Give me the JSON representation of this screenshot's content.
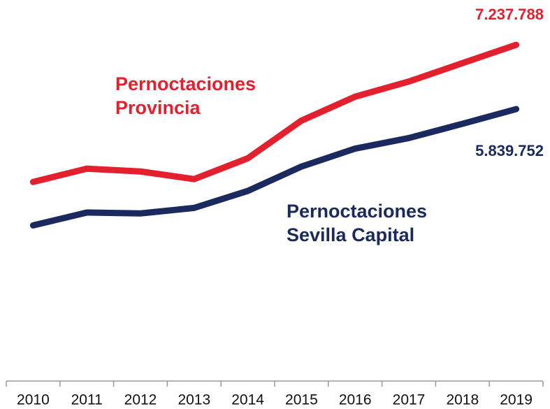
{
  "chart_data": {
    "type": "line",
    "categories": [
      "2010",
      "2011",
      "2012",
      "2013",
      "2014",
      "2015",
      "2016",
      "2017",
      "2018",
      "2019"
    ],
    "series": [
      {
        "name": "Pernoctaciones\nProvincia",
        "color": "#e3202e",
        "values": [
          4255000,
          4544000,
          4483000,
          4316000,
          4770000,
          5590000,
          6110000,
          6440000,
          6840000,
          7237788
        ],
        "value_labels": [
          null,
          null,
          null,
          null,
          null,
          null,
          null,
          null,
          null,
          "7.237.788"
        ]
      },
      {
        "name": "Pernoctaciones\nSevilla Capital",
        "color": "#1b2a5e",
        "values": [
          3310000,
          3590000,
          3570000,
          3690000,
          4060000,
          4590000,
          4980000,
          5210000,
          5520000,
          5839752
        ],
        "value_labels": [
          null,
          null,
          null,
          null,
          null,
          null,
          null,
          null,
          null,
          "5.839.752"
        ]
      }
    ],
    "ylim": [
      0,
      8000000
    ]
  }
}
